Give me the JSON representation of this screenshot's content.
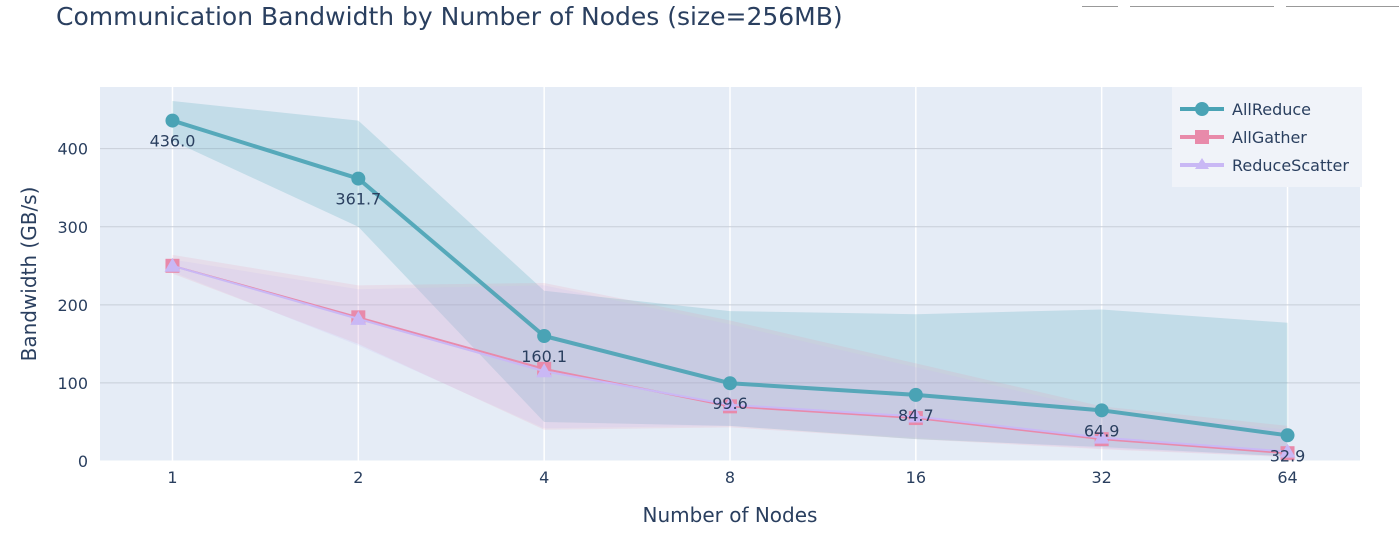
{
  "chart_data": {
    "type": "line",
    "title": "Communication Bandwidth by Number of Nodes (size=256MB)",
    "xlabel": "Number of Nodes",
    "ylabel": "Bandwidth (GB/s)",
    "x": [
      1,
      2,
      4,
      8,
      16,
      32,
      64
    ],
    "x_tick_labels": [
      "1",
      "2",
      "4",
      "8",
      "16",
      "32",
      "64"
    ],
    "x_scale": "log2",
    "ylim": [
      0,
      479
    ],
    "y_ticks": [
      0,
      100,
      200,
      300,
      400
    ],
    "y_tick_labels": [
      "0",
      "100",
      "200",
      "300",
      "400"
    ],
    "grid": true,
    "legend_position": "top-right",
    "series": [
      {
        "name": "AllReduce",
        "color": "#4aa3b5",
        "marker": "circle",
        "values": [
          436.0,
          361.7,
          160.1,
          99.6,
          84.7,
          64.9,
          32.9
        ],
        "labels": [
          "436.0",
          "361.7",
          "160.1",
          "99.6",
          "84.7",
          "64.9",
          "32.9"
        ],
        "band_upper": [
          461,
          436,
          218,
          192,
          188,
          194,
          177
        ],
        "band_lower": [
          410,
          300,
          50,
          45,
          28,
          18,
          6
        ]
      },
      {
        "name": "AllGather",
        "color": "#e88aaa",
        "marker": "square",
        "values": [
          250,
          184,
          118,
          70,
          55,
          28,
          10
        ],
        "band_upper": [
          264,
          225,
          228,
          180,
          125,
          70,
          45
        ],
        "band_lower": [
          240,
          150,
          40,
          43,
          28,
          15,
          5
        ]
      },
      {
        "name": "ReduceScatter",
        "color": "#c9b8f5",
        "marker": "triangle-up",
        "values": [
          250,
          182,
          115,
          72,
          57,
          30,
          12
        ],
        "band_upper": [
          258,
          220,
          225,
          175,
          120,
          65,
          40
        ],
        "band_lower": [
          242,
          148,
          42,
          45,
          30,
          16,
          6
        ]
      }
    ]
  }
}
